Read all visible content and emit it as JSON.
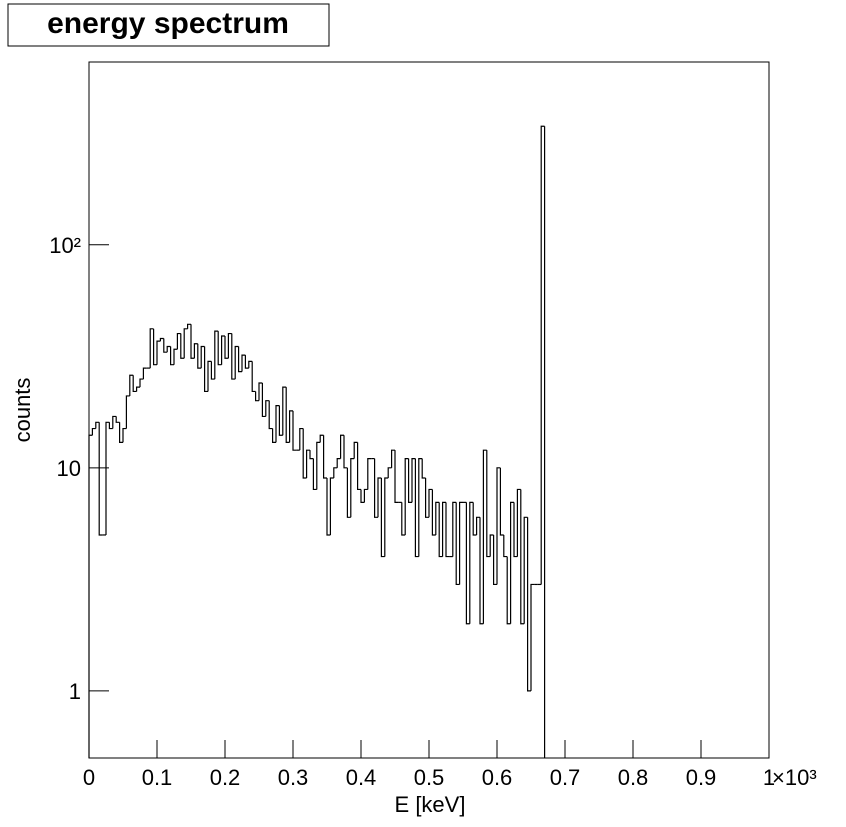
{
  "chart_data": {
    "type": "histogram",
    "title": "energy spectrum",
    "x_label": "E [keV]",
    "y_label": "counts",
    "x_exponent_label": "×10³",
    "bins": [
      0,
      0.005,
      0.01,
      0.015,
      0.02,
      0.025,
      0.03,
      0.035,
      0.04,
      0.045,
      0.05,
      0.055,
      0.06,
      0.065,
      0.07,
      0.075,
      0.08,
      0.085,
      0.09,
      0.095,
      0.1,
      0.105,
      0.11,
      0.115,
      0.12,
      0.125,
      0.13,
      0.135,
      0.14,
      0.145,
      0.15,
      0.155,
      0.16,
      0.165,
      0.17,
      0.175,
      0.18,
      0.185,
      0.19,
      0.195,
      0.2,
      0.205,
      0.21,
      0.215,
      0.22,
      0.225,
      0.23,
      0.235,
      0.24,
      0.245,
      0.25,
      0.255,
      0.26,
      0.265,
      0.27,
      0.275,
      0.28,
      0.285,
      0.29,
      0.295,
      0.3,
      0.305,
      0.31,
      0.315,
      0.32,
      0.325,
      0.33,
      0.335,
      0.34,
      0.345,
      0.35,
      0.355,
      0.36,
      0.365,
      0.37,
      0.375,
      0.38,
      0.385,
      0.39,
      0.395,
      0.4,
      0.405,
      0.41,
      0.415,
      0.42,
      0.425,
      0.43,
      0.435,
      0.44,
      0.445,
      0.45,
      0.455,
      0.46,
      0.465,
      0.47,
      0.475,
      0.48,
      0.485,
      0.49,
      0.495,
      0.5,
      0.505,
      0.51,
      0.515,
      0.52,
      0.525,
      0.53,
      0.535,
      0.54,
      0.545,
      0.55,
      0.555,
      0.56,
      0.565,
      0.57,
      0.575,
      0.58,
      0.585,
      0.59,
      0.595,
      0.6,
      0.605,
      0.61,
      0.615,
      0.62,
      0.625,
      0.63,
      0.635,
      0.64,
      0.645,
      0.65,
      0.655,
      0.66,
      0.665,
      0.67
    ],
    "values": [
      14,
      15,
      16,
      5,
      5,
      16,
      15,
      17,
      16,
      13,
      15,
      21,
      26,
      22,
      23,
      25,
      28,
      28,
      42,
      29,
      37,
      38,
      33,
      35,
      29,
      34,
      40,
      31,
      42,
      44,
      31,
      36,
      28,
      35,
      22,
      30,
      25,
      41,
      29,
      39,
      31,
      40,
      25,
      35,
      27,
      32,
      28,
      30,
      22,
      20,
      24,
      17,
      20,
      15,
      13,
      19,
      14,
      23,
      13,
      18,
      12,
      12,
      15,
      9,
      12,
      11,
      8,
      13,
      14,
      9,
      5,
      9,
      10,
      11,
      14,
      10,
      6,
      11,
      13,
      8,
      7,
      8,
      11,
      11,
      6,
      9,
      4,
      9,
      10,
      12,
      7,
      7,
      5,
      11,
      7,
      11,
      4,
      11,
      9,
      6,
      8,
      5,
      7,
      4,
      7,
      4,
      4,
      7,
      3,
      7,
      7,
      2,
      7,
      5,
      6,
      2,
      12,
      4,
      5,
      3,
      10,
      5,
      4,
      2,
      7,
      4,
      8,
      2,
      6,
      1,
      3,
      3,
      3,
      340
    ],
    "color": "#000000",
    "xlim": [
      0,
      1
    ],
    "xticks": [
      0,
      0.1,
      0.2,
      0.3,
      0.4,
      0.5,
      0.6,
      0.7,
      0.8,
      0.9,
      1
    ],
    "ylim": [
      0.5,
      660
    ],
    "yticks": [
      1,
      10,
      {
        "value": 100,
        "label": "10²"
      }
    ],
    "log_y": true
  }
}
